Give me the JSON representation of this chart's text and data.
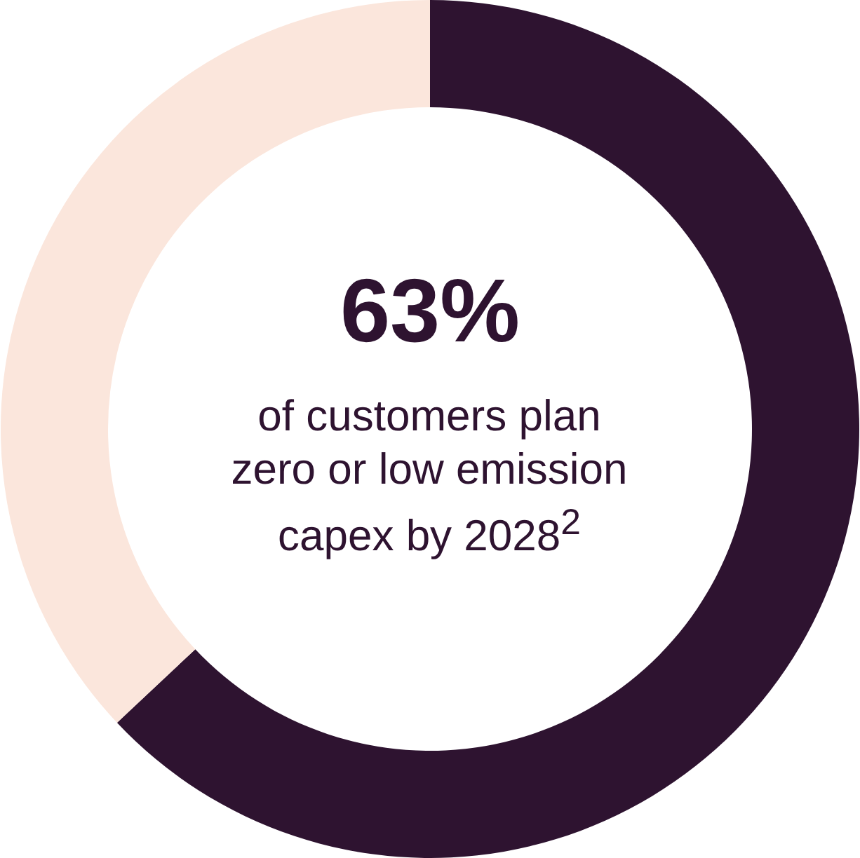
{
  "chart_data": {
    "type": "donut",
    "categories": [
      null,
      null
    ],
    "values": [
      63,
      37
    ],
    "colors": [
      "#2e1330",
      "#fbe6dc"
    ],
    "value_labels": [
      "63%",
      null
    ],
    "annotations": [
      "of customers plan zero or low emission capex by 2028$^{2}$"
    ],
    "legend": false
  }
}
